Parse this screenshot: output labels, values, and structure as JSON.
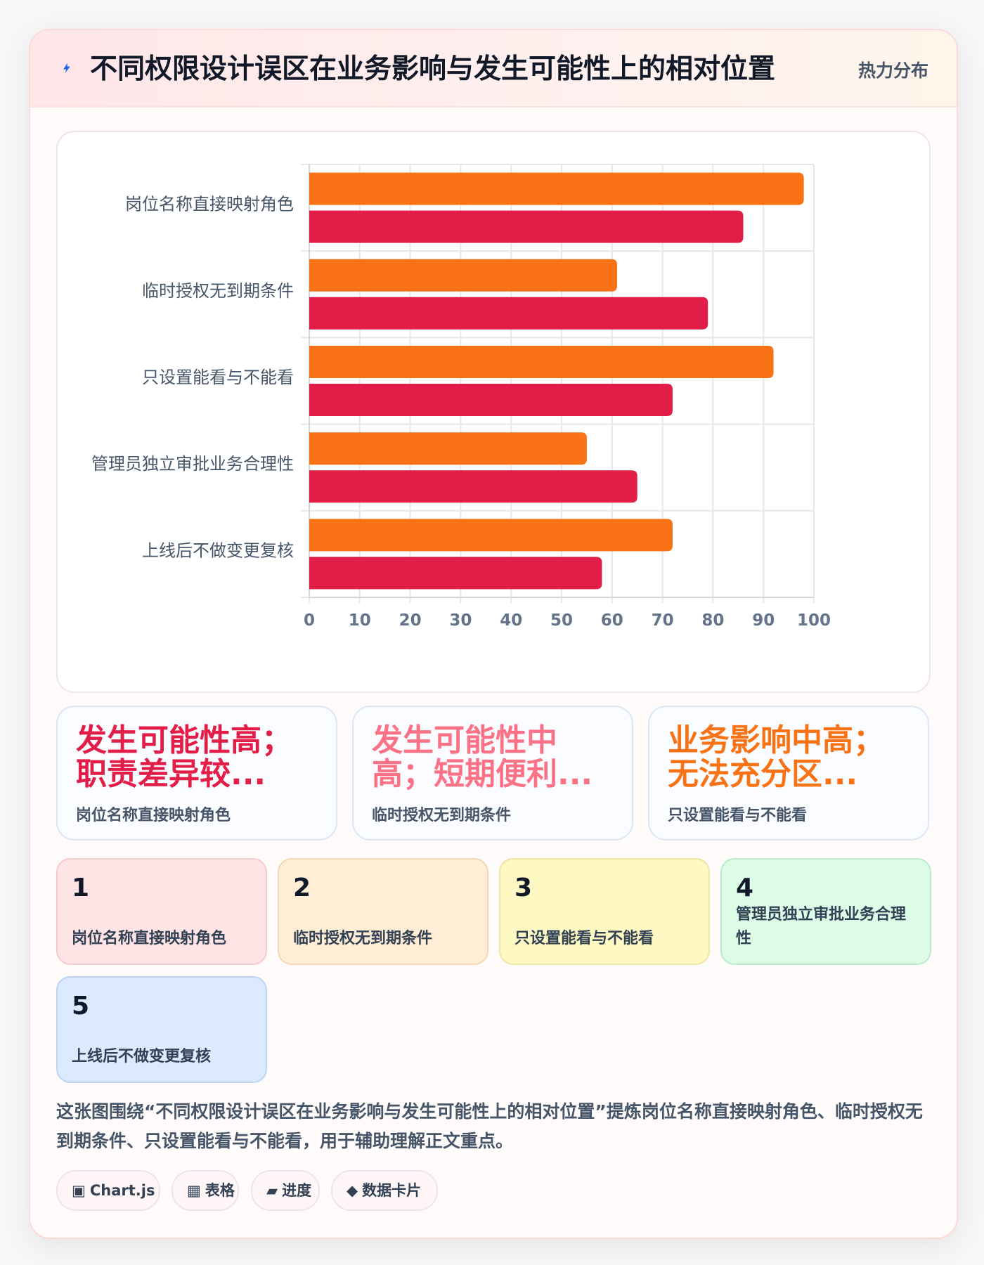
{
  "header": {
    "title": "不同权限设计误区在业务影响与发生可能性上的相对位置",
    "badge": "热力分布"
  },
  "chart_data": {
    "type": "bar",
    "orientation": "horizontal",
    "categories": [
      "岗位名称直接映射角色",
      "临时授权无到期条件",
      "只设置能看与不能看",
      "管理员独立审批业务合理性",
      "上线后不做变更复核"
    ],
    "series": [
      {
        "values": [
          98,
          61,
          92,
          55,
          72
        ],
        "color": "#f97316"
      },
      {
        "values": [
          86,
          79,
          72,
          65,
          58
        ],
        "color": "#e11d48"
      }
    ],
    "xlim": [
      0,
      100
    ],
    "xticks": [
      0,
      10,
      20,
      30,
      40,
      50,
      60,
      70,
      80,
      90,
      100
    ],
    "grid": true,
    "legend": "none"
  },
  "stats": [
    {
      "value": "发生可能性高；职责差异较...",
      "label": "岗位名称直接映射角色",
      "color": "#e11d48"
    },
    {
      "value": "发生可能性中高；短期便利...",
      "label": "临时授权无到期条件",
      "color": "#fb7185"
    },
    {
      "value": "业务影响中高；无法充分区...",
      "label": "只设置能看与不能看",
      "color": "#f97316"
    }
  ],
  "ranking": [
    {
      "num": "1",
      "name": "岗位名称直接映射角色",
      "bg": "#ffe4e6",
      "border": "#f6c9cf"
    },
    {
      "num": "2",
      "name": "临时授权无到期条件",
      "bg": "#ffedd5",
      "border": "#f5d7b4"
    },
    {
      "num": "3",
      "name": "只设置能看与不能看",
      "bg": "#fef9c3",
      "border": "#efe5a2"
    },
    {
      "num": "4",
      "name": "管理员独立审批业务合理性",
      "bg": "#dcfce7",
      "border": "#b9ecca"
    },
    {
      "num": "5",
      "name": "上线后不做变更复核",
      "bg": "#dbeafe",
      "border": "#bcd4f3"
    }
  ],
  "summary": "这张图围绕“不同权限设计误区在业务影响与发生可能性上的相对位置”提炼岗位名称直接映射角色、临时授权无到期条件、只设置能看与不能看，用于辅助理解正文重点。",
  "tags": [
    {
      "icon": "▣",
      "label": "Chart.js"
    },
    {
      "icon": "▦",
      "label": "表格"
    },
    {
      "icon": "▰",
      "label": "进度"
    },
    {
      "icon": "◆",
      "label": "数据卡片"
    }
  ]
}
